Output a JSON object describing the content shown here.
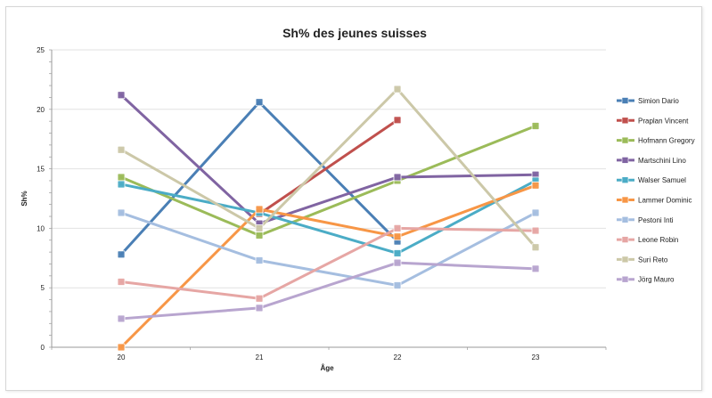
{
  "chart_data": {
    "type": "line",
    "title": "Sh% des jeunes suisses",
    "xlabel": "Âge",
    "ylabel": "Sh%",
    "x": [
      "20",
      "21",
      "22",
      "23"
    ],
    "ylim": [
      0,
      25
    ],
    "yticks": [
      "0",
      "5",
      "10",
      "15",
      "20",
      "25"
    ],
    "grid": true,
    "legend_position": "right",
    "series": [
      {
        "name": "Simion Dario",
        "color": "#4a7fb5",
        "values": [
          7.8,
          20.6,
          8.9,
          null
        ]
      },
      {
        "name": "Praplan Vincent",
        "color": "#c0504d",
        "values": [
          null,
          11.2,
          19.1,
          null
        ]
      },
      {
        "name": "Hofmann Gregory",
        "color": "#9bbb59",
        "values": [
          14.3,
          9.4,
          14.0,
          18.6
        ]
      },
      {
        "name": "Martschini Lino",
        "color": "#8064a2",
        "values": [
          21.2,
          10.4,
          14.3,
          14.5
        ]
      },
      {
        "name": "Walser Samuel",
        "color": "#4bacc6",
        "values": [
          13.7,
          11.3,
          7.9,
          14.0
        ]
      },
      {
        "name": "Lammer Dominic",
        "color": "#f79646",
        "values": [
          0.0,
          11.6,
          9.3,
          13.6
        ]
      },
      {
        "name": "Pestoni Inti",
        "color": "#a5bee0",
        "values": [
          11.3,
          7.3,
          5.2,
          11.3
        ]
      },
      {
        "name": "Leone Robin",
        "color": "#e6a6a4",
        "values": [
          5.5,
          4.1,
          10.0,
          9.8
        ]
      },
      {
        "name": "Suri Reto",
        "color": "#ccc8a8",
        "values": [
          16.6,
          10.0,
          21.7,
          8.4
        ]
      },
      {
        "name": "Jörg Mauro",
        "color": "#b8a5cf",
        "values": [
          2.4,
          3.3,
          7.1,
          6.6
        ]
      }
    ]
  }
}
